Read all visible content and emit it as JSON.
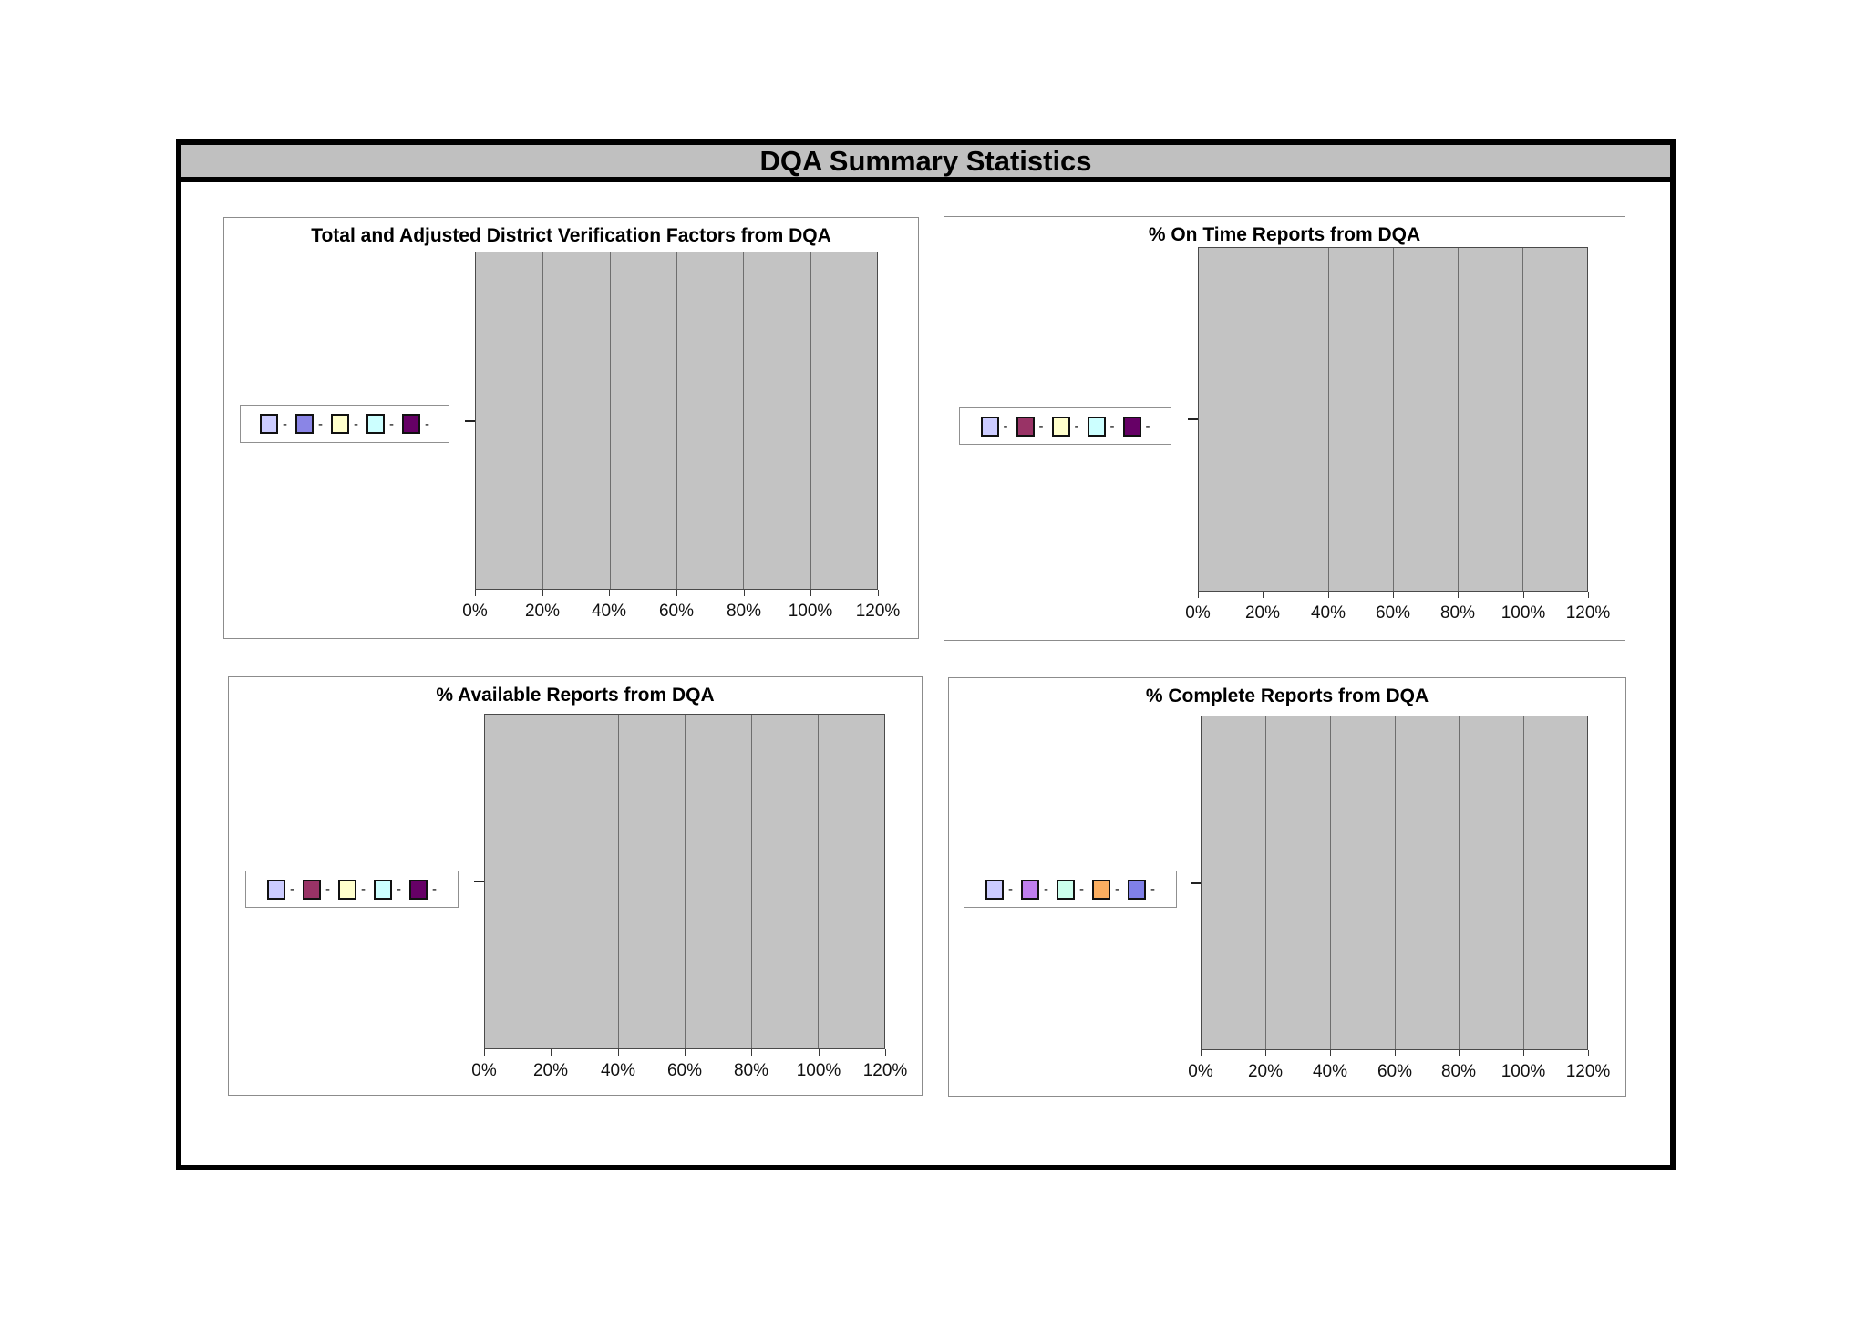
{
  "report": {
    "title": "DQA Summary Statistics",
    "title_bar_bg": "#c0c0c0",
    "frame_border_color": "#000000"
  },
  "chart_data": [
    {
      "type": "bar",
      "orientation": "horizontal",
      "title": "Total and Adjusted District Verification Factors from DQA",
      "categories": [
        ""
      ],
      "series": [
        {
          "name": "-",
          "color": "#ccccff",
          "values": []
        },
        {
          "name": "-",
          "color": "#8a85e6",
          "values": []
        },
        {
          "name": "-",
          "color": "#ffffcc",
          "values": []
        },
        {
          "name": "-",
          "color": "#ccffff",
          "values": []
        },
        {
          "name": "-",
          "color": "#660066",
          "values": []
        }
      ],
      "x_tick_labels": [
        "0%",
        "20%",
        "40%",
        "60%",
        "80%",
        "100%",
        "120%"
      ],
      "xlim": [
        0,
        1.2
      ],
      "plot_bg": "#c3c3c3",
      "gridlines": true,
      "legend_position": "left"
    },
    {
      "type": "bar",
      "orientation": "horizontal",
      "title": "% On Time Reports from DQA",
      "categories": [
        ""
      ],
      "series": [
        {
          "name": "-",
          "color": "#ccccff",
          "values": []
        },
        {
          "name": "-",
          "color": "#993366",
          "values": []
        },
        {
          "name": "-",
          "color": "#ffffcc",
          "values": []
        },
        {
          "name": "-",
          "color": "#ccffff",
          "values": []
        },
        {
          "name": "-",
          "color": "#660066",
          "values": []
        }
      ],
      "x_tick_labels": [
        "0%",
        "20%",
        "40%",
        "60%",
        "80%",
        "100%",
        "120%"
      ],
      "xlim": [
        0,
        1.2
      ],
      "plot_bg": "#c3c3c3",
      "gridlines": true,
      "legend_position": "left"
    },
    {
      "type": "bar",
      "orientation": "horizontal",
      "title": "% Available Reports from DQA",
      "categories": [
        ""
      ],
      "series": [
        {
          "name": "-",
          "color": "#ccccff",
          "values": []
        },
        {
          "name": "-",
          "color": "#993366",
          "values": []
        },
        {
          "name": "-",
          "color": "#ffffcc",
          "values": []
        },
        {
          "name": "-",
          "color": "#ccffff",
          "values": []
        },
        {
          "name": "-",
          "color": "#660066",
          "values": []
        }
      ],
      "x_tick_labels": [
        "0%",
        "20%",
        "40%",
        "60%",
        "80%",
        "100%",
        "120%"
      ],
      "xlim": [
        0,
        1.2
      ],
      "plot_bg": "#c3c3c3",
      "gridlines": true,
      "legend_position": "left"
    },
    {
      "type": "bar",
      "orientation": "horizontal",
      "title": "% Complete Reports from DQA",
      "categories": [
        ""
      ],
      "series": [
        {
          "name": "-",
          "color": "#ccccff",
          "values": []
        },
        {
          "name": "-",
          "color": "#bf7eed",
          "values": []
        },
        {
          "name": "-",
          "color": "#ccffec",
          "values": []
        },
        {
          "name": "-",
          "color": "#fbae60",
          "values": []
        },
        {
          "name": "-",
          "color": "#8080e8",
          "values": []
        }
      ],
      "x_tick_labels": [
        "0%",
        "20%",
        "40%",
        "60%",
        "80%",
        "100%",
        "120%"
      ],
      "xlim": [
        0,
        1.2
      ],
      "plot_bg": "#c3c3c3",
      "gridlines": true,
      "legend_position": "left"
    }
  ]
}
